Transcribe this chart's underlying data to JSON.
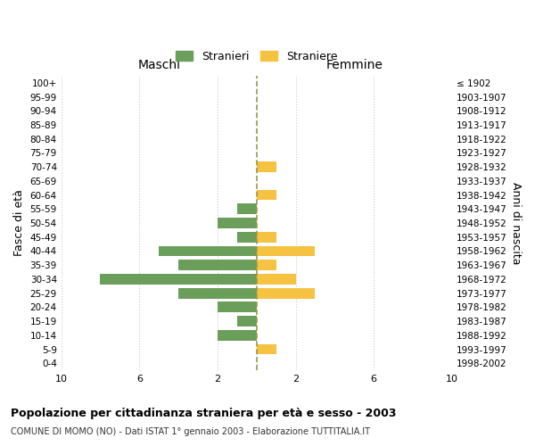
{
  "age_groups": [
    "0-4",
    "5-9",
    "10-14",
    "15-19",
    "20-24",
    "25-29",
    "30-34",
    "35-39",
    "40-44",
    "45-49",
    "50-54",
    "55-59",
    "60-64",
    "65-69",
    "70-74",
    "75-79",
    "80-84",
    "85-89",
    "90-94",
    "95-99",
    "100+"
  ],
  "birth_years": [
    "1998-2002",
    "1993-1997",
    "1988-1992",
    "1983-1987",
    "1978-1982",
    "1973-1977",
    "1968-1972",
    "1963-1967",
    "1958-1962",
    "1953-1957",
    "1948-1952",
    "1943-1947",
    "1938-1942",
    "1933-1937",
    "1928-1932",
    "1923-1927",
    "1918-1922",
    "1913-1917",
    "1908-1912",
    "1903-1907",
    "≤ 1902"
  ],
  "maschi": [
    0,
    0,
    2,
    1,
    2,
    4,
    8,
    4,
    5,
    1,
    2,
    1,
    0,
    0,
    0,
    0,
    0,
    0,
    0,
    0,
    0
  ],
  "femmine": [
    0,
    1,
    0,
    0,
    0,
    3,
    2,
    1,
    3,
    1,
    0,
    0,
    1,
    0,
    1,
    0,
    0,
    0,
    0,
    0,
    0
  ],
  "maschi_color": "#6a9e5a",
  "femmine_color": "#f5c242",
  "center_line_color": "#9a9a4a",
  "background_color": "#ffffff",
  "grid_color": "#cccccc",
  "title": "Popolazione per cittadinanza straniera per età e sesso - 2003",
  "subtitle": "COMUNE DI MOMO (NO) - Dati ISTAT 1° gennaio 2003 - Elaborazione TUTTITALIA.IT",
  "xlabel_left": "Maschi",
  "xlabel_right": "Femmine",
  "ylabel_left": "Fasce di età",
  "ylabel_right": "Anni di nascita",
  "legend_stranieri": "Stranieri",
  "legend_straniere": "Straniere",
  "xlim": 10
}
